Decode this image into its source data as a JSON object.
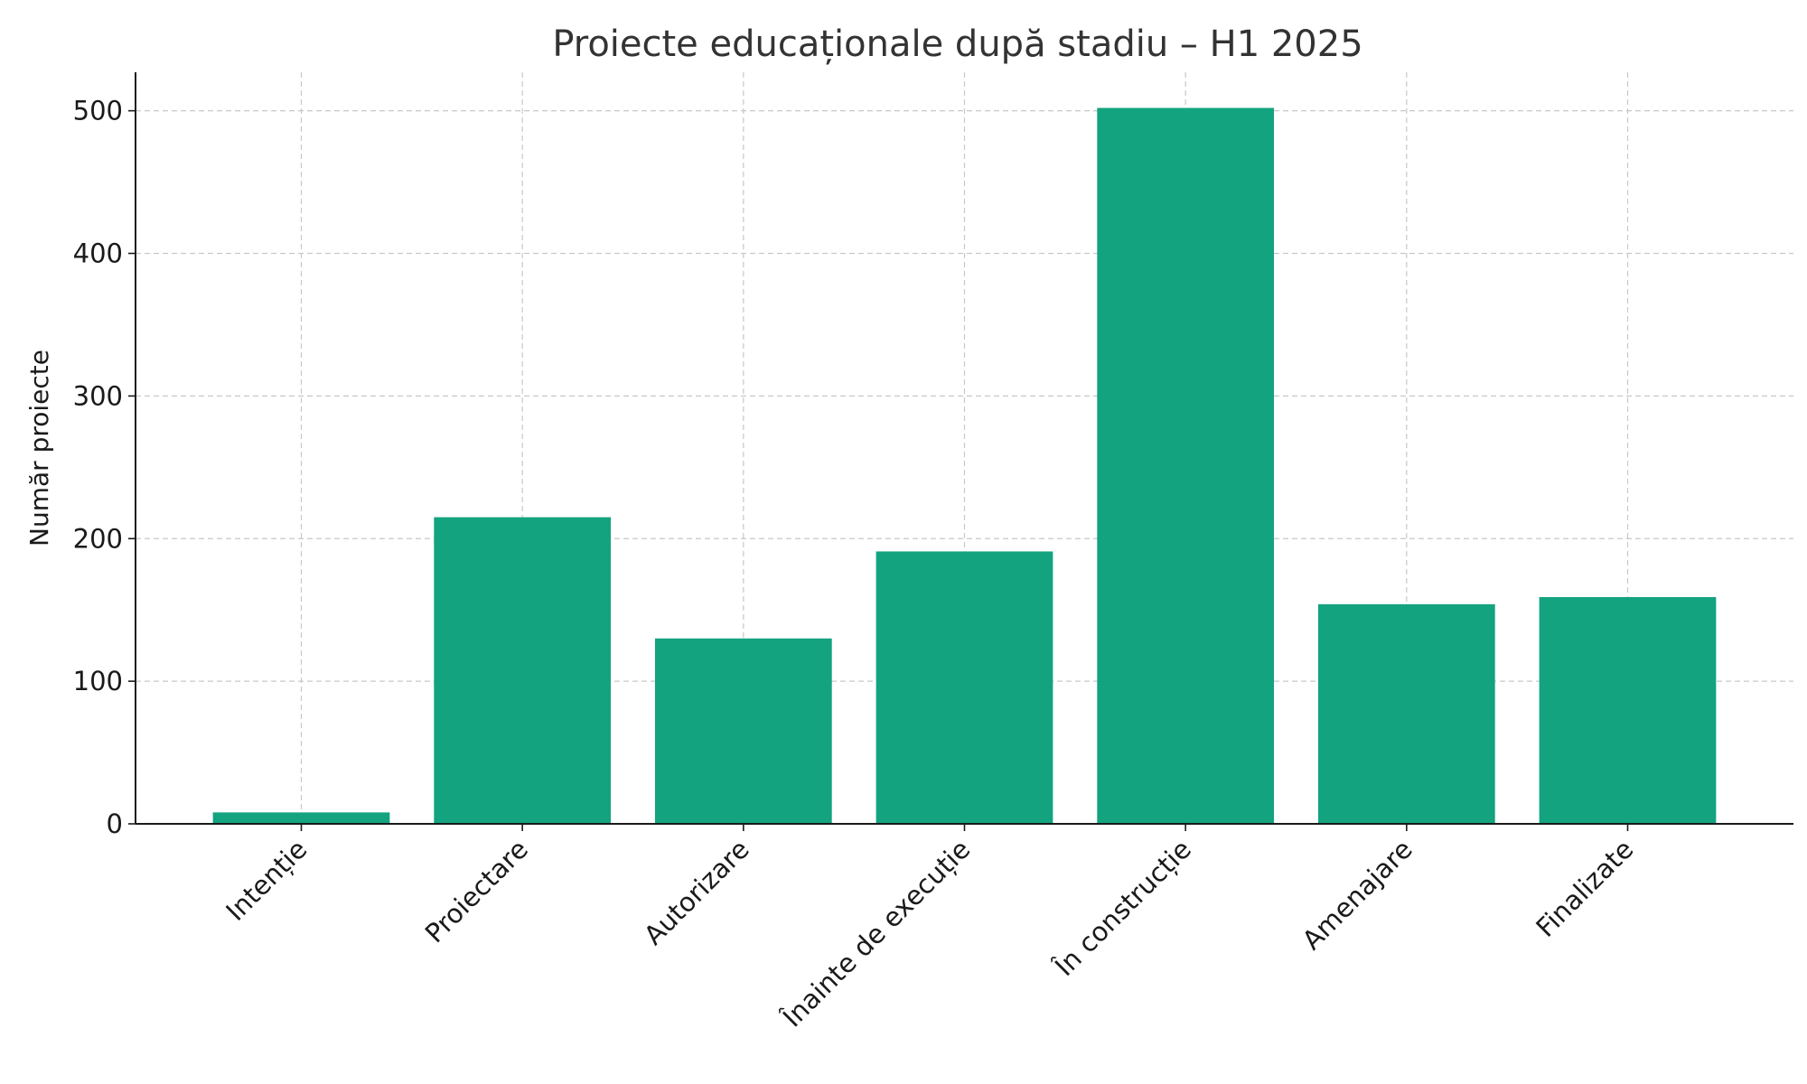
{
  "chart_data": {
    "type": "bar",
    "title": "Proiecte educaționale după stadiu – H1 2025",
    "xlabel": "",
    "ylabel": "Număr proiecte",
    "categories": [
      "Intenție",
      "Proiectare",
      "Autorizare",
      "Înainte de execuție",
      "În construcție",
      "Amenajare",
      "Finalizate"
    ],
    "values": [
      8,
      215,
      130,
      191,
      502,
      154,
      159
    ],
    "ylim": [
      0,
      527
    ],
    "yticks": [
      0,
      100,
      200,
      300,
      400,
      500
    ],
    "grid": true,
    "bar_color": "#13a37f"
  }
}
